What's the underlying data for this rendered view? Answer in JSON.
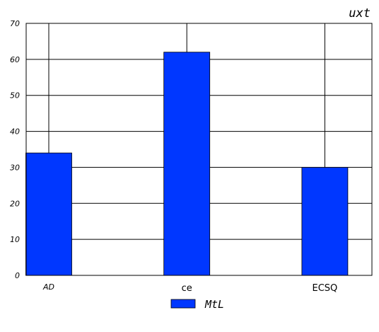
{
  "chart_data": {
    "type": "bar",
    "title": "uxt",
    "categories": [
      "AD",
      "ce",
      "ECSQ"
    ],
    "series": [
      {
        "name": "MtL",
        "values": [
          34,
          62,
          30
        ],
        "color": "#0037ff"
      }
    ],
    "xlabel": "",
    "ylabel": "",
    "ylim": [
      0,
      70
    ],
    "yticks": [
      0,
      10,
      20,
      30,
      40,
      50,
      60,
      70
    ],
    "grid": true,
    "legend_position": "bottom-center"
  }
}
